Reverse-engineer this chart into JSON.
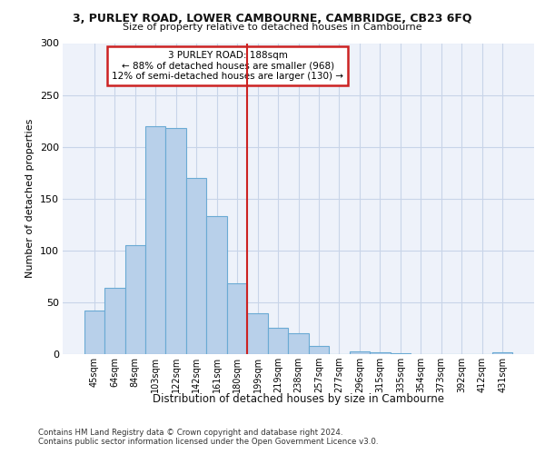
{
  "title1": "3, PURLEY ROAD, LOWER CAMBOURNE, CAMBRIDGE, CB23 6FQ",
  "title2": "Size of property relative to detached houses in Cambourne",
  "xlabel": "Distribution of detached houses by size in Cambourne",
  "ylabel": "Number of detached properties",
  "footer1": "Contains HM Land Registry data © Crown copyright and database right 2024.",
  "footer2": "Contains public sector information licensed under the Open Government Licence v3.0.",
  "annotation_line1": "3 PURLEY ROAD: 188sqm",
  "annotation_line2": "← 88% of detached houses are smaller (968)",
  "annotation_line3": "12% of semi-detached houses are larger (130) →",
  "bar_labels": [
    "45sqm",
    "64sqm",
    "84sqm",
    "103sqm",
    "122sqm",
    "142sqm",
    "161sqm",
    "180sqm",
    "199sqm",
    "219sqm",
    "238sqm",
    "257sqm",
    "277sqm",
    "296sqm",
    "315sqm",
    "335sqm",
    "354sqm",
    "373sqm",
    "392sqm",
    "412sqm",
    "431sqm"
  ],
  "bar_values": [
    42,
    64,
    105,
    220,
    218,
    170,
    133,
    68,
    39,
    25,
    20,
    8,
    0,
    3,
    2,
    1,
    0,
    0,
    0,
    0,
    2
  ],
  "bar_color": "#b8d0ea",
  "bar_edge_color": "#6aaad4",
  "vline_color": "#cc2222",
  "vline_x": 7.5,
  "annotation_box_edge_color": "#cc2222",
  "grid_color": "#c8d4e8",
  "bg_color": "#eef2fa",
  "ylim": [
    0,
    300
  ],
  "yticks": [
    0,
    50,
    100,
    150,
    200,
    250,
    300
  ]
}
